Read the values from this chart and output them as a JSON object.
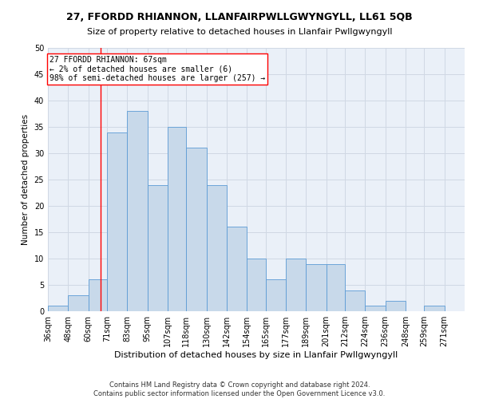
{
  "title": "27, FFORDD RHIANNON, LLANFAIRPWLLGWYNGYLL, LL61 5QB",
  "subtitle": "Size of property relative to detached houses in Llanfair Pwllgwyngyll",
  "xlabel": "Distribution of detached houses by size in Llanfair Pwllgwyngyll",
  "ylabel": "Number of detached properties",
  "footnote1": "Contains HM Land Registry data © Crown copyright and database right 2024.",
  "footnote2": "Contains public sector information licensed under the Open Government Licence v3.0.",
  "bar_labels": [
    "36sqm",
    "48sqm",
    "60sqm",
    "71sqm",
    "83sqm",
    "95sqm",
    "107sqm",
    "118sqm",
    "130sqm",
    "142sqm",
    "154sqm",
    "165sqm",
    "177sqm",
    "189sqm",
    "201sqm",
    "212sqm",
    "224sqm",
    "236sqm",
    "248sqm",
    "259sqm",
    "271sqm"
  ],
  "bar_values": [
    1,
    3,
    6,
    34,
    38,
    24,
    35,
    31,
    24,
    16,
    10,
    6,
    10,
    9,
    9,
    4,
    1,
    2,
    0,
    1,
    0
  ],
  "bar_color": "#c8d9ea",
  "bar_edge_color": "#5b9bd5",
  "grid_color": "#d0d8e4",
  "background_color": "#eaf0f8",
  "annotation_line1": "27 FFORDD RHIANNON: 67sqm",
  "annotation_line2": "← 2% of detached houses are smaller (6)",
  "annotation_line3": "98% of semi-detached houses are larger (257) →",
  "annotation_box_color": "white",
  "annotation_box_edge_color": "red",
  "vline_color": "red",
  "vline_x_index": 2.75,
  "ylim": [
    0,
    50
  ],
  "yticks": [
    0,
    5,
    10,
    15,
    20,
    25,
    30,
    35,
    40,
    45,
    50
  ],
  "bin_edges": [
    36,
    48,
    60,
    71,
    83,
    95,
    107,
    118,
    130,
    142,
    154,
    165,
    177,
    189,
    201,
    212,
    224,
    236,
    248,
    259,
    271,
    283
  ],
  "title_fontsize": 9,
  "subtitle_fontsize": 8,
  "xlabel_fontsize": 8,
  "ylabel_fontsize": 7.5,
  "tick_fontsize": 7,
  "footnote_fontsize": 6,
  "annotation_fontsize": 7
}
